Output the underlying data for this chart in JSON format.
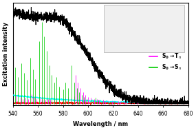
{
  "xlim": [
    540,
    680
  ],
  "xlabel": "Wavelength / nm",
  "ylabel": "Excitation intensity",
  "magenta_lines": [
    [
      543,
      0.09
    ],
    [
      546,
      0.07
    ],
    [
      548,
      0.05
    ],
    [
      550,
      0.06
    ],
    [
      552,
      0.05
    ],
    [
      555,
      0.1
    ],
    [
      557,
      0.07
    ],
    [
      559,
      0.05
    ],
    [
      562,
      0.06
    ],
    [
      564,
      0.05
    ],
    [
      566,
      0.04
    ],
    [
      568,
      0.05
    ],
    [
      570,
      0.04
    ],
    [
      573,
      0.04
    ],
    [
      575,
      0.05
    ],
    [
      577,
      0.04
    ],
    [
      580,
      0.05
    ],
    [
      582,
      0.06
    ],
    [
      584,
      0.07
    ],
    [
      587,
      0.06
    ],
    [
      589,
      0.08
    ],
    [
      590,
      0.3
    ],
    [
      592,
      0.22
    ],
    [
      594,
      0.16
    ],
    [
      596,
      0.12
    ],
    [
      598,
      0.09
    ],
    [
      600,
      0.07
    ],
    [
      602,
      0.06
    ],
    [
      605,
      0.05
    ],
    [
      607,
      0.05
    ],
    [
      609,
      0.04
    ],
    [
      612,
      0.04
    ],
    [
      614,
      0.03
    ],
    [
      616,
      0.03
    ],
    [
      619,
      0.03
    ],
    [
      621,
      0.03
    ],
    [
      624,
      0.03
    ],
    [
      626,
      0.02
    ],
    [
      629,
      0.02
    ],
    [
      631,
      0.02
    ],
    [
      634,
      0.02
    ],
    [
      636,
      0.02
    ],
    [
      639,
      0.02
    ],
    [
      644,
      0.02
    ]
  ],
  "green_lines": [
    [
      542,
      0.38
    ],
    [
      544,
      0.28
    ],
    [
      547,
      0.42
    ],
    [
      549,
      0.32
    ],
    [
      551,
      0.25
    ],
    [
      554,
      0.48
    ],
    [
      556,
      0.36
    ],
    [
      558,
      0.26
    ],
    [
      561,
      0.65
    ],
    [
      563,
      0.85
    ],
    [
      565,
      0.7
    ],
    [
      567,
      0.55
    ],
    [
      569,
      0.4
    ],
    [
      571,
      0.3
    ],
    [
      573,
      0.22
    ],
    [
      575,
      0.28
    ],
    [
      577,
      0.18
    ],
    [
      580,
      0.15
    ],
    [
      582,
      0.22
    ],
    [
      584,
      0.16
    ],
    [
      587,
      0.4
    ],
    [
      589,
      0.22
    ],
    [
      591,
      0.16
    ],
    [
      593,
      0.12
    ],
    [
      595,
      0.09
    ],
    [
      597,
      0.07
    ],
    [
      599,
      0.05
    ],
    [
      602,
      0.04
    ],
    [
      604,
      0.04
    ],
    [
      606,
      0.06
    ],
    [
      608,
      0.04
    ],
    [
      611,
      0.03
    ],
    [
      613,
      0.03
    ],
    [
      616,
      0.02
    ],
    [
      618,
      0.02
    ],
    [
      621,
      0.02
    ]
  ],
  "black_curve_noise_seed": 42,
  "red_noise_seed": 99,
  "cyan_noise_seed": 7,
  "background_color": "#ffffff"
}
